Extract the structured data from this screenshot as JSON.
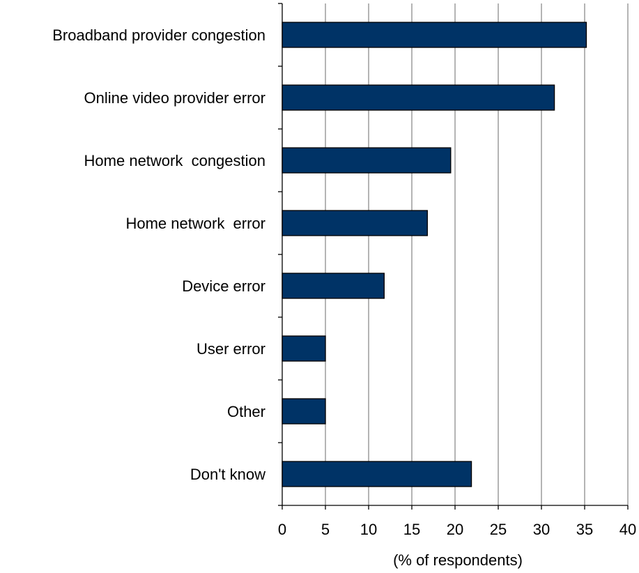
{
  "chart_data": {
    "type": "bar",
    "orientation": "horizontal",
    "categories": [
      "Broadband provider congestion",
      "Online video provider error",
      "Home network  congestion",
      "Home network  error",
      "Device error",
      "User error",
      "Other",
      "Don't know"
    ],
    "values": [
      35.2,
      31.5,
      19.5,
      16.8,
      11.8,
      5.0,
      5.0,
      21.9
    ],
    "title": "",
    "xlabel": "(% of respondents)",
    "ylabel": "",
    "xlim": [
      0,
      40
    ],
    "xticks": [
      0,
      5,
      10,
      15,
      20,
      25,
      30,
      35,
      40
    ],
    "xtick_labels": [
      "0",
      "5",
      "10",
      "15",
      "20",
      "25",
      "30",
      "35",
      "40"
    ],
    "grid": "vertical",
    "legend": "none",
    "colors": {
      "bar_fill": "#003366",
      "bar_stroke": "#000000",
      "grid": "#8c8c8c",
      "axis": "#000000"
    }
  }
}
